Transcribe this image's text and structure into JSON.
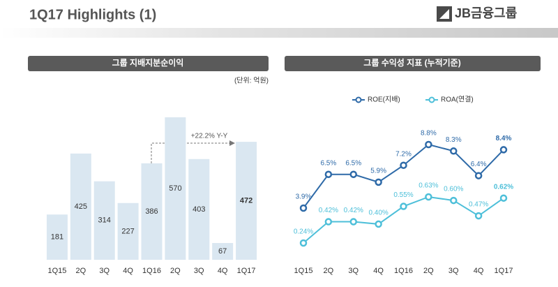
{
  "header": {
    "title": "1Q17 Highlights (1)",
    "logo": "JB금융그룹"
  },
  "chart_data": [
    {
      "type": "bar",
      "title": "그룹 지배지분순이익",
      "unit": "(단위: 억원)",
      "categories": [
        "1Q15",
        "2Q",
        "3Q",
        "4Q",
        "1Q16",
        "2Q",
        "3Q",
        "4Q",
        "1Q17"
      ],
      "values": [
        181,
        425,
        314,
        227,
        386,
        570,
        403,
        67,
        472
      ],
      "color": "#dae7f1",
      "annotation": "+22.2% Y-Y"
    },
    {
      "type": "line",
      "title": "그룹 수익성 지표 (누적기준)",
      "categories": [
        "1Q15",
        "2Q",
        "3Q",
        "4Q",
        "1Q16",
        "2Q",
        "3Q",
        "4Q",
        "1Q17"
      ],
      "series": [
        {
          "name": "ROE(지배)",
          "color": "#2e6aa8",
          "values": [
            3.9,
            6.5,
            6.5,
            5.9,
            7.2,
            8.8,
            8.3,
            6.4,
            8.4
          ],
          "value_labels": [
            "3.9%",
            "6.5%",
            "6.5%",
            "5.9%",
            "7.2%",
            "8.8%",
            "8.3%",
            "6.4%",
            "8.4%"
          ]
        },
        {
          "name": "ROA(연결)",
          "color": "#4dbfd9",
          "axis": "y2",
          "values": [
            0.24,
            0.42,
            0.42,
            0.4,
            0.55,
            0.63,
            0.6,
            0.47,
            0.62
          ],
          "value_labels": [
            "0.24%",
            "0.42%",
            "0.42%",
            "0.40%",
            "0.55%",
            "0.63%",
            "0.60%",
            "0.47%",
            "0.62%"
          ]
        }
      ]
    }
  ]
}
